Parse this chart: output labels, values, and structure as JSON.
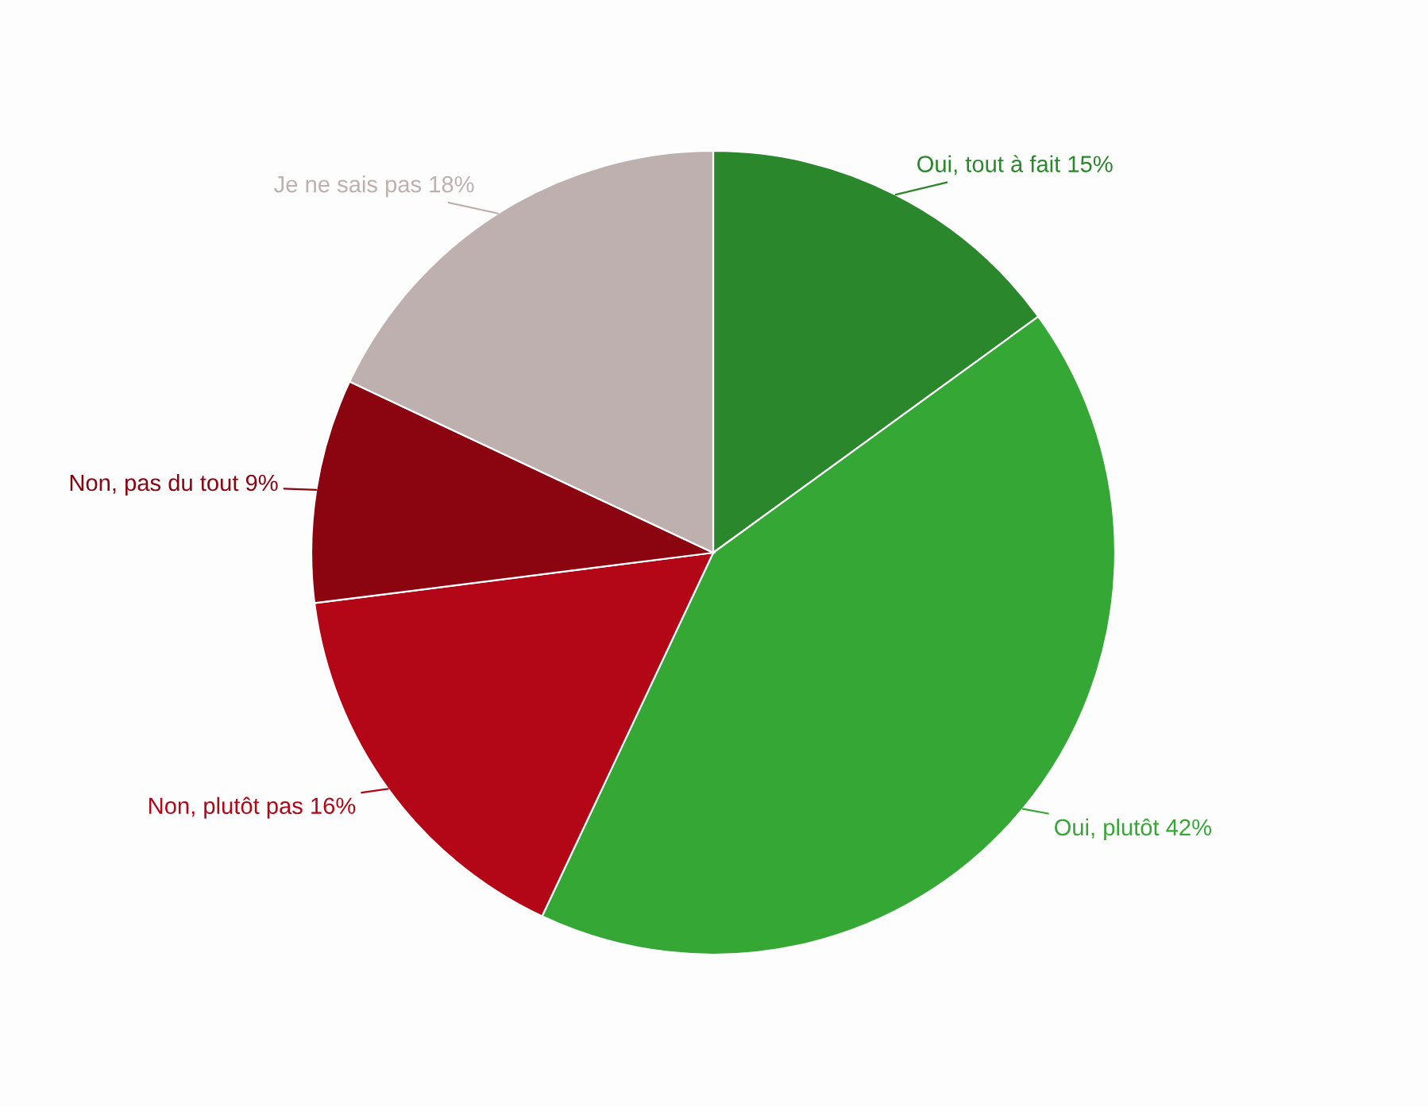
{
  "chart_data": {
    "type": "pie",
    "categories": [
      "Oui, tout à fait",
      "Oui, plutôt",
      "Non, plutôt pas",
      "Non, pas du tout",
      "Je ne sais pas"
    ],
    "values": [
      15,
      42,
      16,
      9,
      18
    ],
    "colors": [
      "#2a872b",
      "#35a735",
      "#b30616",
      "#8b0511",
      "#beb0af"
    ],
    "value_labels": [
      "15%",
      "42%",
      "16%",
      "9%",
      "18%"
    ]
  }
}
